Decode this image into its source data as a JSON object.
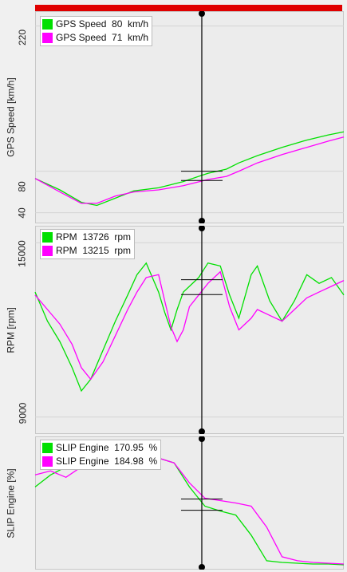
{
  "chart_data": [
    {
      "type": "line",
      "ylabel": "GPS Speed [km/h]",
      "yticks": [
        "40",
        "80",
        "220"
      ],
      "tick_values": [
        40,
        80,
        220
      ],
      "ylim": [
        32,
        232
      ],
      "x": [
        0,
        0.08,
        0.15,
        0.2,
        0.26,
        0.32,
        0.4,
        0.48,
        0.56,
        0.62,
        0.66,
        0.72,
        0.8,
        0.88,
        0.95,
        1.0
      ],
      "series": [
        {
          "name": "GPS Speed",
          "legend_label": "GPS Speed  80  km/h",
          "color": "#00e000",
          "values": [
            73,
            62,
            50,
            47,
            54,
            61,
            64,
            70,
            78,
            82,
            88,
            95,
            103,
            110,
            115,
            118
          ]
        },
        {
          "name": "GPS Speed",
          "legend_label": "GPS Speed  71  km/h",
          "color": "#ff00ff",
          "values": [
            73,
            60,
            49,
            49,
            56,
            60,
            62,
            66,
            72,
            75,
            80,
            88,
            96,
            103,
            109,
            113
          ]
        }
      ],
      "cursor": {
        "x": 0.54,
        "marks": [
          80,
          71
        ]
      }
    },
    {
      "type": "line",
      "ylabel": "RPM [rpm]",
      "yticks": [
        "9000",
        "15000"
      ],
      "tick_values": [
        9000,
        15000
      ],
      "ylim": [
        8500,
        15500
      ],
      "x": [
        0,
        0.04,
        0.08,
        0.12,
        0.15,
        0.18,
        0.22,
        0.26,
        0.3,
        0.33,
        0.36,
        0.4,
        0.42,
        0.44,
        0.46,
        0.48,
        0.5,
        0.53,
        0.56,
        0.6,
        0.63,
        0.66,
        0.7,
        0.72,
        0.76,
        0.8,
        0.84,
        0.88,
        0.92,
        0.96,
        1.0
      ],
      "series": [
        {
          "name": "RPM",
          "legend_label": "RPM  13726  rpm",
          "color": "#00e000",
          "values": [
            13300,
            12300,
            11600,
            10700,
            9900,
            10300,
            11300,
            12300,
            13200,
            13900,
            14300,
            13300,
            12600,
            12000,
            12700,
            13300,
            13500,
            13800,
            14300,
            14200,
            13200,
            12400,
            13900,
            14200,
            13000,
            12300,
            13000,
            13900,
            13600,
            13800,
            13200
          ]
        },
        {
          "name": "RPM",
          "legend_label": "RPM  13215  rpm",
          "color": "#ff00ff",
          "values": [
            13200,
            12700,
            12200,
            11500,
            10700,
            10300,
            10900,
            11800,
            12700,
            13300,
            13800,
            13900,
            13000,
            12100,
            11600,
            12000,
            12800,
            13200,
            13600,
            14000,
            12800,
            12000,
            12400,
            12700,
            12500,
            12300,
            12700,
            13100,
            13300,
            13500,
            13700
          ]
        }
      ],
      "cursor": {
        "x": 0.54,
        "marks": [
          13726,
          13215
        ]
      }
    },
    {
      "type": "line",
      "ylabel": "SLIP Engine [%]",
      "yticks": [],
      "tick_values": [],
      "ylim": [
        100,
        260
      ],
      "x": [
        0,
        0.05,
        0.1,
        0.15,
        0.2,
        0.25,
        0.3,
        0.35,
        0.4,
        0.45,
        0.5,
        0.55,
        0.6,
        0.65,
        0.7,
        0.75,
        0.8,
        0.85,
        0.9,
        0.95,
        1.0
      ],
      "series": [
        {
          "name": "SLIP Engine",
          "legend_label": "SLIP Engine  170.95  %",
          "color": "#00e000",
          "values": [
            200,
            215,
            225,
            235,
            245,
            252,
            248,
            240,
            236,
            230,
            200,
            176,
            170,
            165,
            140,
            108,
            106,
            105,
            104,
            104,
            103
          ]
        },
        {
          "name": "SLIP Engine",
          "legend_label": "SLIP Engine  184.98  %",
          "color": "#ff00ff",
          "values": [
            215,
            220,
            212,
            225,
            242,
            250,
            248,
            242,
            236,
            230,
            205,
            186,
            183,
            180,
            176,
            150,
            113,
            108,
            106,
            105,
            104
          ]
        }
      ],
      "cursor": {
        "x": 0.54,
        "marks": [
          170.95,
          184.98
        ]
      }
    }
  ]
}
